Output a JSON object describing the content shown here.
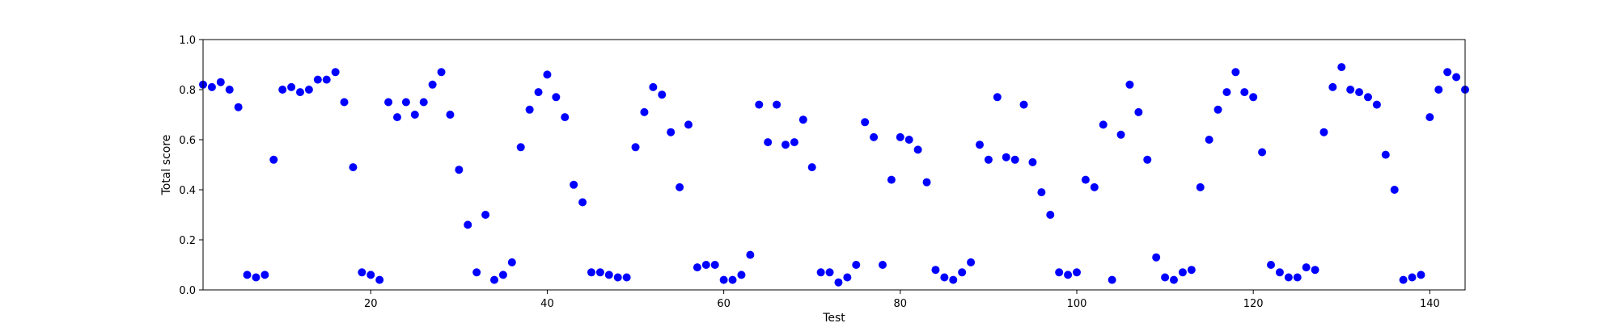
{
  "chart_data": {
    "type": "scatter",
    "title": "",
    "xlabel": "Test",
    "ylabel": "Total score",
    "xlim": [
      1,
      144
    ],
    "ylim": [
      0,
      1.0
    ],
    "xticks": [
      20,
      40,
      60,
      80,
      100,
      120,
      140
    ],
    "yticks": [
      "0.0",
      "0.2",
      "0.4",
      "0.6",
      "0.8",
      "1.0"
    ],
    "grid": false,
    "marker_color": "#0000ff",
    "series": [
      {
        "x": [
          1,
          2,
          3,
          4,
          5,
          6,
          7,
          8,
          9,
          10,
          11,
          12,
          13,
          14,
          15,
          16,
          17,
          18,
          19,
          20,
          21,
          22,
          23,
          24,
          25,
          26,
          27,
          28,
          29,
          30,
          31,
          32,
          33,
          34,
          35,
          36,
          37,
          38,
          39,
          40,
          41,
          42,
          43,
          44,
          45,
          46,
          47,
          48,
          49,
          50,
          51,
          52,
          53,
          54,
          55,
          56,
          57,
          58,
          59,
          60,
          61,
          62,
          63,
          64,
          65,
          66,
          67,
          68,
          69,
          70,
          71,
          72,
          73,
          74,
          75,
          76,
          77,
          78,
          79,
          80,
          81,
          82,
          83,
          84,
          85,
          86,
          87,
          88,
          89,
          90,
          91,
          92,
          93,
          94,
          95,
          96,
          97,
          98,
          99,
          100,
          101,
          102,
          103,
          104,
          105,
          106,
          107,
          108,
          109,
          110,
          111,
          112,
          113,
          114,
          115,
          116,
          117,
          118,
          119,
          120,
          121,
          122,
          123,
          124,
          125,
          126,
          127,
          128,
          129,
          130,
          131,
          132,
          133,
          134,
          135,
          136,
          137,
          138,
          139,
          140,
          141,
          142,
          143,
          144
        ],
        "y": [
          0.82,
          0.81,
          0.83,
          0.8,
          0.73,
          0.06,
          0.05,
          0.06,
          0.52,
          0.8,
          0.81,
          0.79,
          0.8,
          0.84,
          0.84,
          0.87,
          0.75,
          0.49,
          0.07,
          0.06,
          0.04,
          0.75,
          0.69,
          0.75,
          0.7,
          0.75,
          0.82,
          0.87,
          0.7,
          0.48,
          0.26,
          0.07,
          0.3,
          0.04,
          0.06,
          0.11,
          0.57,
          0.72,
          0.79,
          0.86,
          0.77,
          0.69,
          0.42,
          0.35,
          0.07,
          0.07,
          0.06,
          0.05,
          0.05,
          0.57,
          0.71,
          0.81,
          0.78,
          0.63,
          0.41,
          0.66,
          0.09,
          0.1,
          0.1,
          0.04,
          0.04,
          0.06,
          0.14,
          0.74,
          0.59,
          0.74,
          0.58,
          0.59,
          0.68,
          0.49,
          0.07,
          0.07,
          0.03,
          0.05,
          0.1,
          0.67,
          0.61,
          0.1,
          0.44,
          0.61,
          0.6,
          0.56,
          0.43,
          0.08,
          0.05,
          0.04,
          0.07,
          0.11,
          0.58,
          0.52,
          0.77,
          0.53,
          0.52,
          0.74,
          0.51,
          0.39,
          0.3,
          0.07,
          0.06,
          0.07,
          0.44,
          0.41,
          0.66,
          0.04,
          0.62,
          0.82,
          0.71,
          0.52,
          0.13,
          0.05,
          0.04,
          0.07,
          0.08,
          0.41,
          0.6,
          0.72,
          0.79,
          0.87,
          0.79,
          0.77,
          0.55,
          0.1,
          0.07,
          0.05,
          0.05,
          0.09,
          0.08,
          0.63,
          0.81,
          0.89,
          0.8,
          0.79,
          0.77,
          0.74,
          0.54,
          0.4,
          0.04,
          0.05,
          0.06,
          0.69,
          0.8,
          0.87,
          0.85,
          0.8
        ]
      }
    ]
  }
}
